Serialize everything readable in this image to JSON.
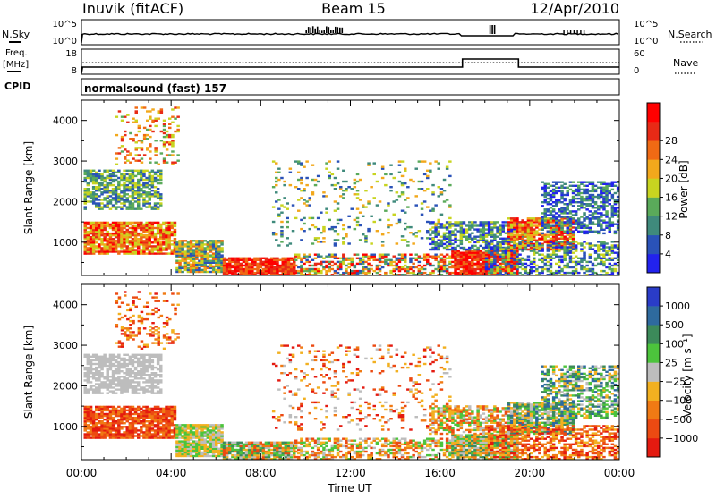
{
  "header": {
    "station": "Inuvik (fitACF)",
    "beam": "Beam 15",
    "date": "12/Apr/2010"
  },
  "status_panels": {
    "nsky_label": "N.Sky",
    "nsky_ticks": [
      "10^5",
      "10^0"
    ],
    "nsearch_label": "N.Search",
    "nsearch_ticks": [
      "10^5",
      "10^0"
    ],
    "freq_label_line1": "Freq.",
    "freq_label_line2": "[MHz]",
    "freq_ticks": [
      "18",
      "8"
    ],
    "nave_label": "Nave",
    "nave_ticks": [
      "60",
      "0"
    ],
    "cpid_label": "CPID",
    "cpid_text": "normalsound (fast) 157"
  },
  "chart_data": [
    {
      "type": "heatmap",
      "name": "power",
      "ylabel": "Slant Range [km]",
      "y_ticks": [
        1000,
        2000,
        3000,
        4000
      ],
      "ylim": [
        180,
        4500
      ],
      "x_ticks": [
        "00:00",
        "04:00",
        "08:00",
        "12:00",
        "16:00",
        "20:00",
        "00:00"
      ],
      "xlim_hours": [
        0,
        24
      ],
      "colorbar_label": "Power [dB]",
      "colorbar_ticks": [
        "4",
        "8",
        "12",
        "16",
        "20",
        "24",
        "28"
      ],
      "colorbar_colors": [
        "#2222ee",
        "#2a52b8",
        "#3f8a7c",
        "#5aaa5a",
        "#c8d420",
        "#f2a81c",
        "#f06a14",
        "#e82a16",
        "#ff0000"
      ],
      "grid": false
    },
    {
      "type": "heatmap",
      "name": "velocity",
      "ylabel": "Slant Range [km]",
      "y_ticks": [
        1000,
        2000,
        3000,
        4000
      ],
      "ylim": [
        180,
        4500
      ],
      "x_ticks": [
        "00:00",
        "04:00",
        "08:00",
        "12:00",
        "16:00",
        "20:00",
        "00:00"
      ],
      "xlim_hours": [
        0,
        24
      ],
      "xlabel": "Time UT",
      "colorbar_label": "Velocity [m s⁻¹]",
      "colorbar_ticks": [
        "1000",
        "500",
        "100",
        "25",
        "−25",
        "−100",
        "−500",
        "−1000"
      ],
      "colorbar_colors": [
        "#2a3cc8",
        "#2e6a9e",
        "#3c8a5a",
        "#4cc43c",
        "#bdbdbd",
        "#f2b020",
        "#f07a14",
        "#ec4a12",
        "#e41a10"
      ],
      "grid": false
    }
  ]
}
